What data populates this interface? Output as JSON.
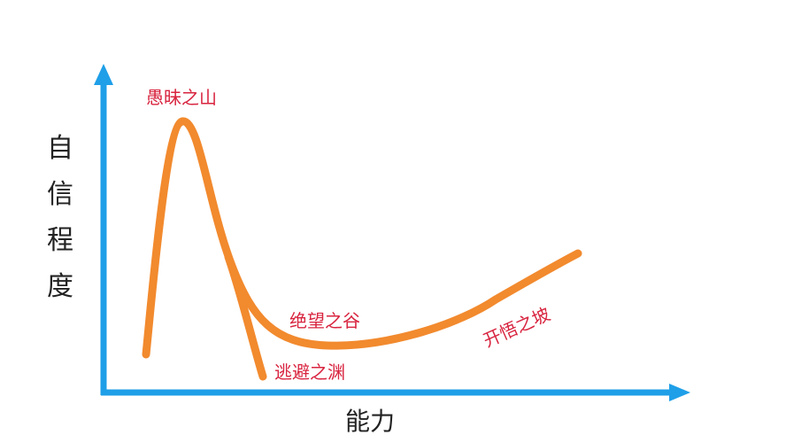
{
  "axes": {
    "y_label_chars": [
      "自",
      "信",
      "程",
      "度"
    ],
    "x_label": "能力"
  },
  "stages": {
    "peak": "愚昧之山",
    "valley": "绝望之谷",
    "escape": "逃避之渊",
    "slope": "开悟之坡"
  },
  "colors": {
    "axis": "#1f9fe8",
    "curve": "#f28a2e",
    "stage_label": "#d8243f",
    "axis_label": "#222222"
  }
}
